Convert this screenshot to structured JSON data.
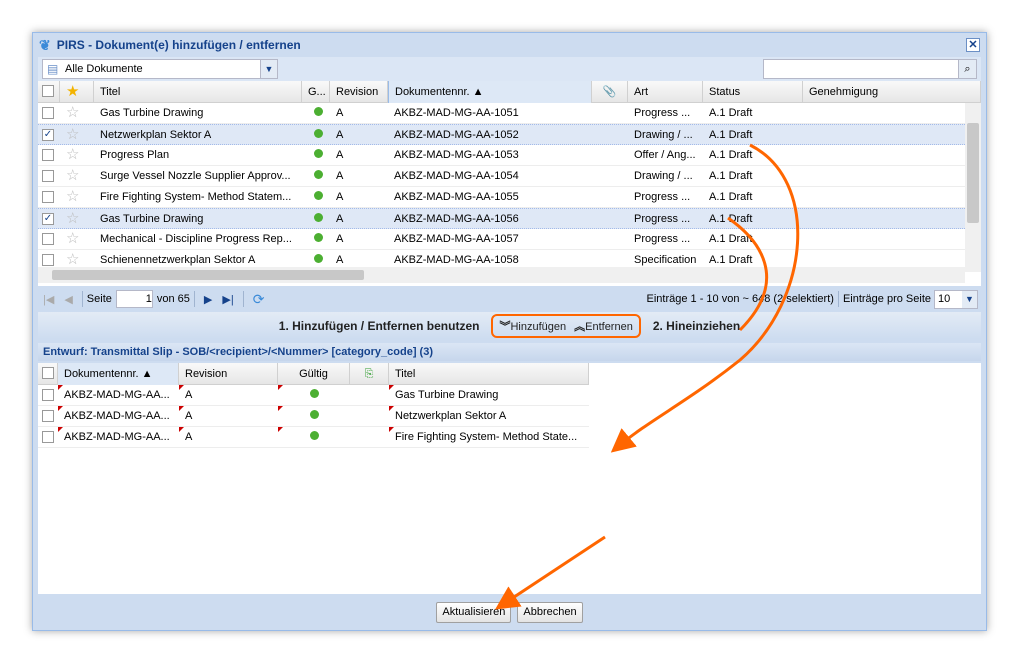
{
  "window": {
    "title": "PIRS - Dokument(e) hinzufügen / entfernen",
    "close": "✕"
  },
  "toolbar": {
    "filter_value": "Alle Dokumente",
    "search_value": ""
  },
  "upper_grid": {
    "columns": [
      "Titel",
      "G...",
      "Revision",
      "Dokumentennr. ▲",
      "Art",
      "Status",
      "Genehmigung"
    ],
    "rows": [
      {
        "checked": false,
        "title": "Gas Turbine Drawing",
        "rev": "A",
        "nr": "AKBZ-MAD-MG-AA-1051",
        "art": "Progress ...",
        "status": "A.1 Draft"
      },
      {
        "checked": true,
        "title": "Netzwerkplan Sektor A",
        "rev": "A",
        "nr": "AKBZ-MAD-MG-AA-1052",
        "art": "Drawing / ...",
        "status": "A.1 Draft"
      },
      {
        "checked": false,
        "title": "Progress Plan",
        "rev": "A",
        "nr": "AKBZ-MAD-MG-AA-1053",
        "art": "Offer / Ang...",
        "status": "A.1 Draft"
      },
      {
        "checked": false,
        "title": "Surge Vessel Nozzle Supplier Approv...",
        "rev": "A",
        "nr": "AKBZ-MAD-MG-AA-1054",
        "art": "Drawing / ...",
        "status": "A.1 Draft"
      },
      {
        "checked": false,
        "title": "Fire Fighting System- Method Statem...",
        "rev": "A",
        "nr": "AKBZ-MAD-MG-AA-1055",
        "art": "Progress ...",
        "status": "A.1 Draft"
      },
      {
        "checked": true,
        "title": "Gas Turbine Drawing",
        "rev": "A",
        "nr": "AKBZ-MAD-MG-AA-1056",
        "art": "Progress ...",
        "status": "A.1 Draft"
      },
      {
        "checked": false,
        "title": "Mechanical - Discipline Progress Rep...",
        "rev": "A",
        "nr": "AKBZ-MAD-MG-AA-1057",
        "art": "Progress ...",
        "status": "A.1 Draft"
      },
      {
        "checked": false,
        "title": "Schienennetzwerkplan Sektor A",
        "rev": "A",
        "nr": "AKBZ-MAD-MG-AA-1058",
        "art": "Specification",
        "status": "A.1 Draft"
      }
    ]
  },
  "pager": {
    "page_label": "Seite",
    "page": "1",
    "of": "von 65",
    "summary": "Einträge 1 - 10 von ~ 648 (2 selektiert)",
    "per_page_label": "Einträge pro Seite",
    "per_page": "10"
  },
  "action": {
    "step1": "1. Hinzufügen / Entfernen benutzen",
    "add": "Hinzufügen",
    "remove": "Entfernen",
    "step2": "2. Hineinziehen"
  },
  "section_title": "Entwurf: Transmittal Slip - SOB/<recipient>/<Nummer> [category_code] (3)",
  "lower_grid": {
    "columns": [
      "Dokumentennr. ▲",
      "Revision",
      "Gültig",
      "Titel"
    ],
    "rows": [
      {
        "nr": "AKBZ-MAD-MG-AA...",
        "rev": "A",
        "title": "Gas Turbine Drawing"
      },
      {
        "nr": "AKBZ-MAD-MG-AA...",
        "rev": "A",
        "title": "Netzwerkplan Sektor A"
      },
      {
        "nr": "AKBZ-MAD-MG-AA...",
        "rev": "A",
        "title": "Fire Fighting System- Method State..."
      }
    ]
  },
  "footer": {
    "update": "Aktualisieren",
    "cancel": "Abbrechen"
  },
  "colors": {
    "accent": "#15428b",
    "annotation": "#ff6600",
    "valid": "#4caf32"
  }
}
